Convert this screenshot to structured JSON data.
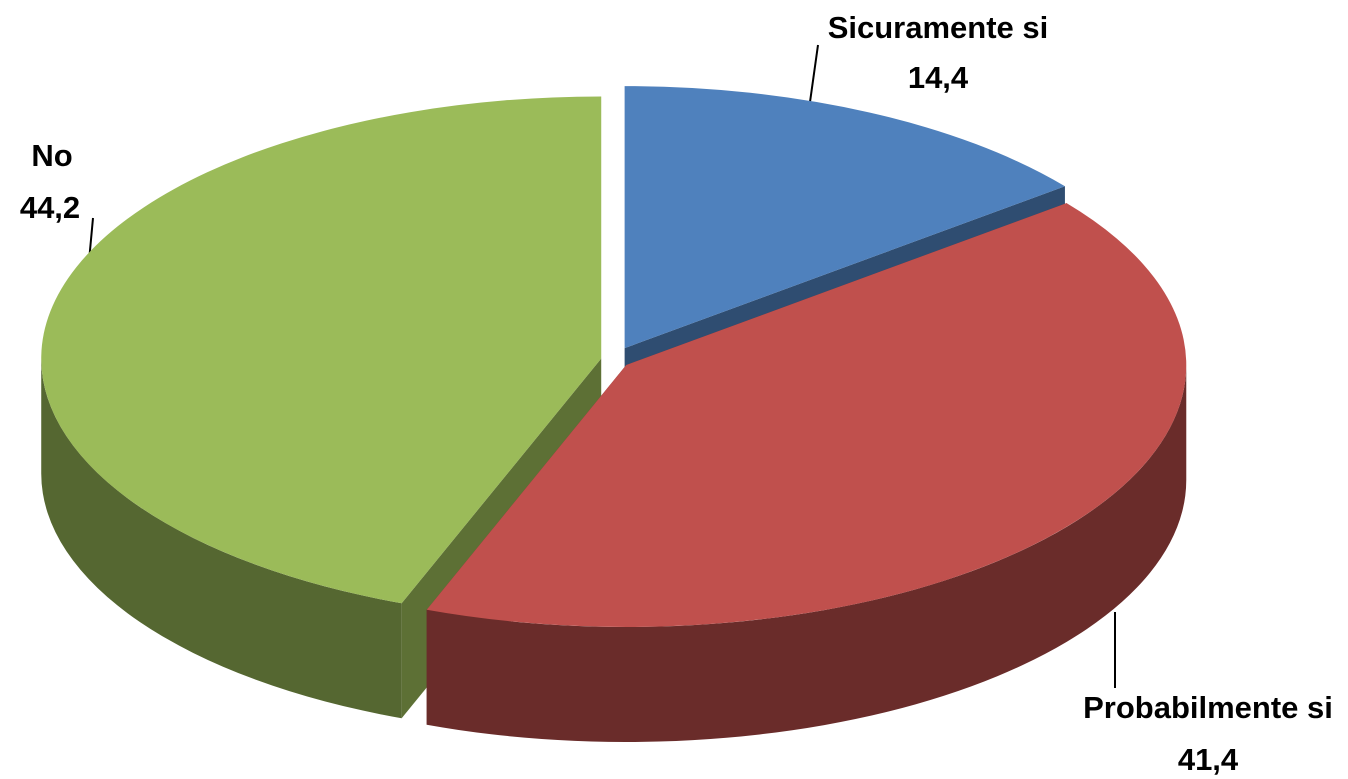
{
  "chart_data": {
    "type": "pie",
    "categories": [
      "Sicuramente si",
      "Probabilmente si",
      "No"
    ],
    "values": [
      14.4,
      41.4,
      44.2
    ],
    "value_labels": [
      "14,4",
      "41,4",
      "44,2"
    ],
    "colors": [
      "#4f81bd",
      "#c0504d",
      "#9bbb59"
    ]
  }
}
